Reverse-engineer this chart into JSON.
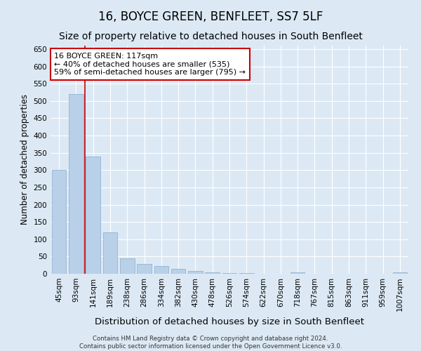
{
  "title": "16, BOYCE GREEN, BENFLEET, SS7 5LF",
  "subtitle": "Size of property relative to detached houses in South Benfleet",
  "xlabel": "Distribution of detached houses by size in South Benfleet",
  "ylabel": "Number of detached properties",
  "footer_line1": "Contains HM Land Registry data © Crown copyright and database right 2024.",
  "footer_line2": "Contains public sector information licensed under the Open Government Licence v3.0.",
  "bins": [
    "45sqm",
    "93sqm",
    "141sqm",
    "189sqm",
    "238sqm",
    "286sqm",
    "334sqm",
    "382sqm",
    "430sqm",
    "478sqm",
    "526sqm",
    "574sqm",
    "622sqm",
    "670sqm",
    "718sqm",
    "767sqm",
    "815sqm",
    "863sqm",
    "911sqm",
    "959sqm",
    "1007sqm"
  ],
  "values": [
    300,
    520,
    340,
    120,
    45,
    28,
    22,
    15,
    8,
    5,
    3,
    2,
    0,
    0,
    5,
    0,
    0,
    0,
    0,
    0,
    5
  ],
  "bar_color": "#b8d0e8",
  "bar_edge_color": "#88aacc",
  "property_line_color": "#cc0000",
  "property_line_bin": 1,
  "annotation_box_line1": "16 BOYCE GREEN: 117sqm",
  "annotation_box_line2": "← 40% of detached houses are smaller (535)",
  "annotation_box_line3": "59% of semi-detached houses are larger (795) →",
  "annotation_box_color": "#cc0000",
  "annotation_box_fill": "#ffffff",
  "ylim": [
    0,
    660
  ],
  "yticks": [
    0,
    50,
    100,
    150,
    200,
    250,
    300,
    350,
    400,
    450,
    500,
    550,
    600,
    650
  ],
  "background_color": "#dce9f5",
  "plot_bg_color": "#dce9f5",
  "grid_color": "#ffffff",
  "title_fontsize": 12,
  "subtitle_fontsize": 10,
  "xlabel_fontsize": 9.5,
  "ylabel_fontsize": 8.5,
  "tick_fontsize": 7.5,
  "annotation_fontsize": 8
}
